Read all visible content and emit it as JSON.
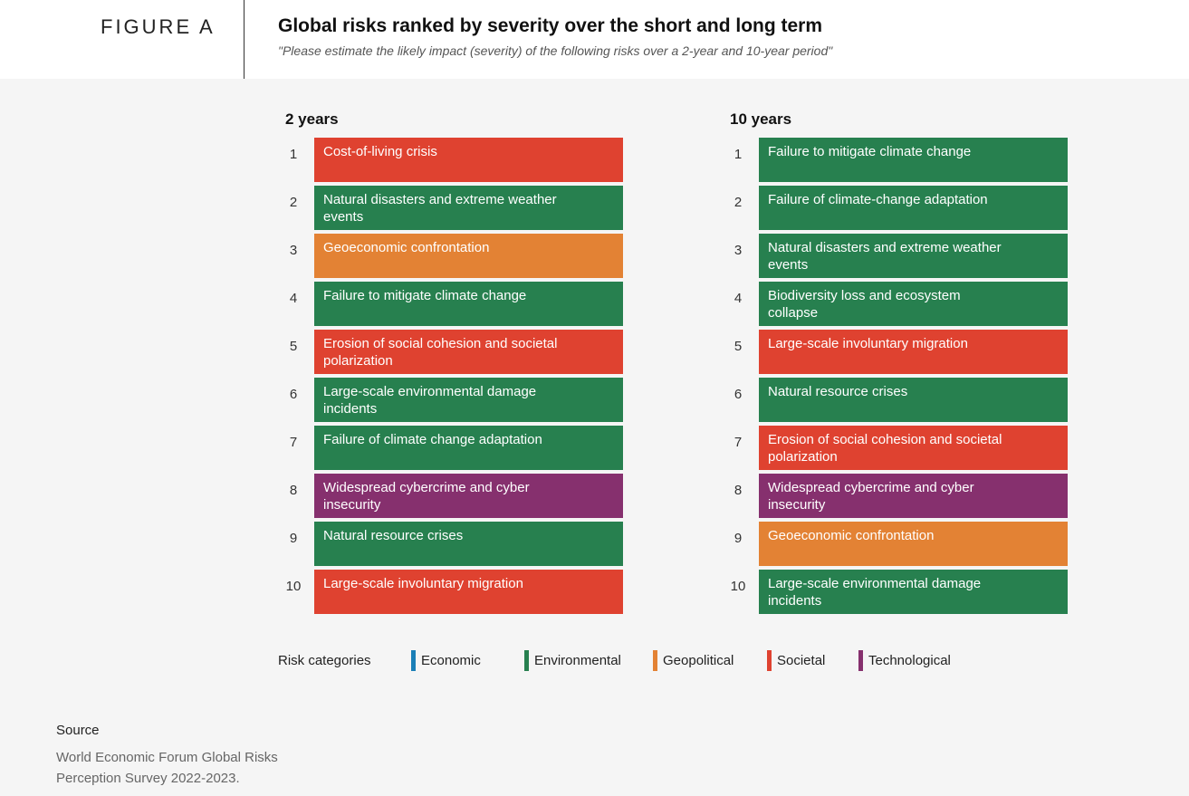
{
  "figure_label": "FIGURE A",
  "colors": {
    "Economic": "#1a7fb7",
    "Environmental": "#27804f",
    "Geopolitical": "#e38234",
    "Societal": "#df4230",
    "Technological": "#86306e"
  },
  "chart_data": {
    "type": "table",
    "title": "Global risks ranked by severity over the short and long term",
    "subtitle": "\"Please estimate the likely impact (severity) of the following risks over a 2-year and 10-year period\"",
    "columns": [
      {
        "heading": "2 years",
        "items": [
          {
            "rank": "1",
            "label": "Cost-of-living crisis",
            "category": "Societal"
          },
          {
            "rank": "2",
            "label": "Natural disasters and extreme weather events",
            "category": "Environmental"
          },
          {
            "rank": "3",
            "label": "Geoeconomic confrontation",
            "category": "Geopolitical"
          },
          {
            "rank": "4",
            "label": "Failure to mitigate climate change",
            "category": "Environmental"
          },
          {
            "rank": "5",
            "label": "Erosion of social cohesion and societal polarization",
            "category": "Societal"
          },
          {
            "rank": "6",
            "label": "Large-scale environmental damage incidents",
            "category": "Environmental"
          },
          {
            "rank": "7",
            "label": "Failure of climate change adaptation",
            "category": "Environmental"
          },
          {
            "rank": "8",
            "label": "Widespread cybercrime and cyber insecurity",
            "category": "Technological"
          },
          {
            "rank": "9",
            "label": "Natural resource crises",
            "category": "Environmental"
          },
          {
            "rank": "10",
            "label": "Large-scale involuntary migration",
            "category": "Societal"
          }
        ]
      },
      {
        "heading": "10 years",
        "items": [
          {
            "rank": "1",
            "label": "Failure to mitigate climate change",
            "category": "Environmental"
          },
          {
            "rank": "2",
            "label": "Failure of climate-change adaptation",
            "category": "Environmental"
          },
          {
            "rank": "3",
            "label": "Natural disasters and extreme weather events",
            "category": "Environmental"
          },
          {
            "rank": "4",
            "label": "Biodiversity loss and ecosystem collapse",
            "category": "Environmental"
          },
          {
            "rank": "5",
            "label": "Large-scale involuntary migration",
            "category": "Societal"
          },
          {
            "rank": "6",
            "label": "Natural resource crises",
            "category": "Environmental"
          },
          {
            "rank": "7",
            "label": "Erosion of social cohesion and societal polarization",
            "category": "Societal"
          },
          {
            "rank": "8",
            "label": "Widespread cybercrime and cyber insecurity",
            "category": "Technological"
          },
          {
            "rank": "9",
            "label": "Geoeconomic confrontation",
            "category": "Geopolitical"
          },
          {
            "rank": "10",
            "label": "Large-scale environmental damage incidents",
            "category": "Environmental"
          }
        ]
      }
    ]
  },
  "legend": {
    "title": "Risk categories",
    "items": [
      {
        "label": "Economic",
        "color": "#1a7fb7"
      },
      {
        "label": "Environmental",
        "color": "#27804f"
      },
      {
        "label": "Geopolitical",
        "color": "#e38234"
      },
      {
        "label": "Societal",
        "color": "#df4230"
      },
      {
        "label": "Technological",
        "color": "#86306e"
      }
    ]
  },
  "source": {
    "title": "Source",
    "text": "World Economic Forum Global Risks Perception Survey 2022-2023."
  }
}
